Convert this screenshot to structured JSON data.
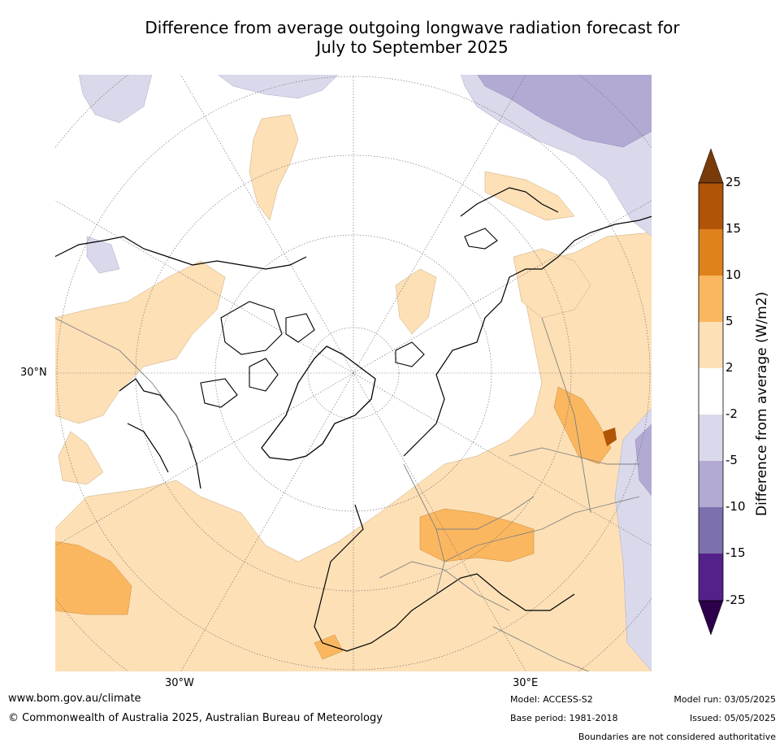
{
  "title_line1": "Difference from average outgoing longwave radiation forecast for",
  "title_line2": "July to September 2025",
  "graticule": {
    "lat_label": "30°N",
    "lon_labels": [
      "30°W",
      "30°E"
    ]
  },
  "colorbar": {
    "title": "Difference from average (W/m2)",
    "ticks": [
      "25",
      "15",
      "10",
      "5",
      "2",
      "-2",
      "-5",
      "-10",
      "-15",
      "-25"
    ],
    "colors": {
      "over": "#7a3b0a",
      "15_25": "#b05408",
      "10_15": "#e0821c",
      "5_10": "#fbb760",
      "2_5": "#fde0b6",
      "neutral": "#ffffff",
      "m5_m2": "#d9d9eb",
      "m10_m5": "#b2aad3",
      "m15_m10": "#7e6fae",
      "m25_m15": "#54218a",
      "under": "#2d004b"
    }
  },
  "footer": {
    "url": "www.bom.gov.au/climate",
    "copyright": "© Commonwealth of Australia 2025, Australian Bureau of Meteorology",
    "model": "Model: ACCESS-S2",
    "base_period": "Base period: 1981-2018",
    "model_run": "Model run: 03/05/2025",
    "issued": "Issued: 05/05/2025",
    "disclaimer": "Boundaries are not considered authoritative"
  }
}
